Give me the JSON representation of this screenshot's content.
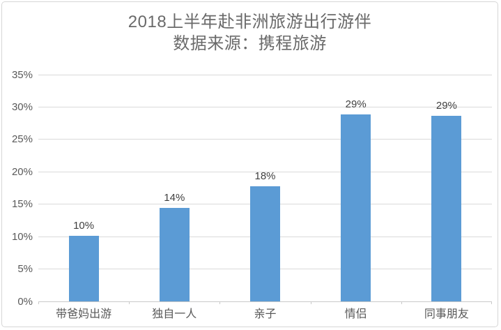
{
  "page": {
    "background": "#ffffff",
    "frame_border_color": "#d6d6d6"
  },
  "chart_data": {
    "type": "bar",
    "title": "2018上半年赴非洲旅游出行游伴",
    "subtitle": "数据来源：携程旅游",
    "categories": [
      "带爸妈出游",
      "独自一人",
      "亲子",
      "情侣",
      "同事朋友"
    ],
    "values": [
      10.1,
      14.4,
      17.8,
      28.9,
      28.6
    ],
    "data_labels": [
      "10%",
      "14%",
      "18%",
      "29%",
      "29%"
    ],
    "y_ticks": [
      {
        "label": "0%",
        "value": 0
      },
      {
        "label": "5%",
        "value": 5
      },
      {
        "label": "10%",
        "value": 10
      },
      {
        "label": "15%",
        "value": 15
      },
      {
        "label": "20%",
        "value": 20
      },
      {
        "label": "25%",
        "value": 25
      },
      {
        "label": "30%",
        "value": 30
      },
      {
        "label": "35%",
        "value": 35
      }
    ],
    "ylim": [
      0,
      35
    ],
    "grid": true,
    "legend_position": "none",
    "xlabel": "",
    "ylabel": "",
    "colors": {
      "bar": "#5b9bd5",
      "gridline": "#dadada",
      "axis": "#c9c9c9",
      "title": "#6a6a6a",
      "tick_label": "#595959",
      "value_label": "#404040"
    }
  }
}
